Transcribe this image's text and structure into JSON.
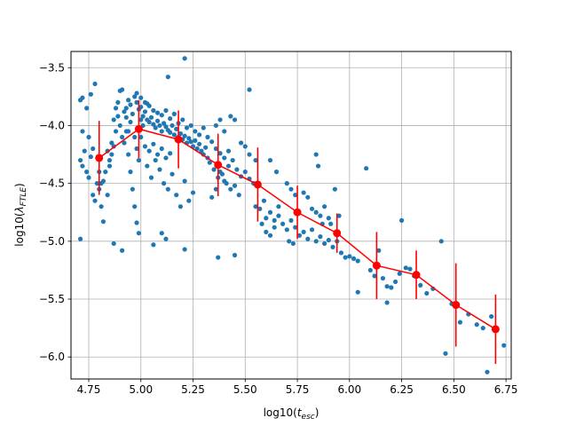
{
  "chart_data": {
    "type": "scatter",
    "xlabel_base": "log10(",
    "xlabel_var": "t",
    "xlabel_sub": "esc",
    "xlabel_close": ")",
    "ylabel_base": "log10(",
    "ylabel_var": "λ",
    "ylabel_sub": "FTLE",
    "ylabel_close": ")",
    "xlim": [
      4.665,
      6.775
    ],
    "ylim": [
      -6.19,
      -3.36
    ],
    "grid": true,
    "xticks": [
      4.75,
      5.0,
      5.25,
      5.5,
      5.75,
      6.0,
      6.25,
      6.5,
      6.75
    ],
    "xtick_labels": [
      "4.75",
      "5.00",
      "5.25",
      "5.50",
      "5.75",
      "6.00",
      "6.25",
      "6.50",
      "6.75"
    ],
    "yticks": [
      -3.5,
      -4.0,
      -4.5,
      -5.0,
      -5.5,
      -6.0
    ],
    "ytick_labels": [
      "−3.5",
      "−4.0",
      "−4.5",
      "−5.0",
      "−5.5",
      "−6.0"
    ],
    "scatter_color": "#1f77b4",
    "binned_color": "#ff0000",
    "binned": {
      "x": [
        4.8,
        4.99,
        5.18,
        5.37,
        5.56,
        5.75,
        5.94,
        6.13,
        6.32,
        6.51,
        6.7
      ],
      "y": [
        -4.28,
        -4.03,
        -4.12,
        -4.34,
        -4.51,
        -4.75,
        -4.93,
        -5.21,
        -5.29,
        -5.55,
        -5.76
      ],
      "err": [
        0.32,
        0.25,
        0.25,
        0.27,
        0.32,
        0.23,
        0.17,
        0.29,
        0.21,
        0.36,
        0.3
      ]
    },
    "scatter_points": [
      [
        4.71,
        -3.78
      ],
      [
        4.72,
        -3.76
      ],
      [
        4.74,
        -3.85
      ],
      [
        4.76,
        -3.73
      ],
      [
        4.78,
        -3.64
      ],
      [
        4.72,
        -4.05
      ],
      [
        4.71,
        -4.3
      ],
      [
        4.72,
        -4.35
      ],
      [
        4.74,
        -4.4
      ],
      [
        4.75,
        -4.45
      ],
      [
        4.76,
        -4.27
      ],
      [
        4.77,
        -4.6
      ],
      [
        4.78,
        -4.65
      ],
      [
        4.79,
        -4.5
      ],
      [
        4.8,
        -4.55
      ],
      [
        4.71,
        -4.98
      ],
      [
        4.73,
        -4.22
      ],
      [
        4.75,
        -4.1
      ],
      [
        4.77,
        -4.2
      ],
      [
        4.8,
        -4.4
      ],
      [
        4.81,
        -4.7
      ],
      [
        4.82,
        -4.83
      ],
      [
        4.84,
        -4.6
      ],
      [
        4.85,
        -4.35
      ],
      [
        4.86,
        -4.15
      ],
      [
        4.87,
        -3.95
      ],
      [
        4.88,
        -3.85
      ],
      [
        4.89,
        -3.8
      ],
      [
        4.9,
        -3.7
      ],
      [
        4.91,
        -3.69
      ],
      [
        4.92,
        -3.88
      ],
      [
        4.93,
        -4.05
      ],
      [
        4.94,
        -4.25
      ],
      [
        4.95,
        -4.4
      ],
      [
        4.96,
        -4.55
      ],
      [
        4.97,
        -4.7
      ],
      [
        4.98,
        -4.84
      ],
      [
        4.99,
        -4.93
      ],
      [
        4.87,
        -5.02
      ],
      [
        4.91,
        -5.08
      ],
      [
        4.93,
        -3.85
      ],
      [
        4.94,
        -3.78
      ],
      [
        4.95,
        -3.82
      ],
      [
        4.96,
        -3.9
      ],
      [
        4.97,
        -3.75
      ],
      [
        4.98,
        -3.8
      ],
      [
        4.99,
        -3.86
      ],
      [
        5.0,
        -3.84
      ],
      [
        5.01,
        -3.92
      ],
      [
        5.02,
        -3.88
      ],
      [
        5.03,
        -3.95
      ],
      [
        5.04,
        -3.97
      ],
      [
        5.05,
        -3.93
      ],
      [
        5.06,
        -3.99
      ],
      [
        5.07,
        -4.02
      ],
      [
        5.08,
        -3.96
      ],
      [
        5.09,
        -4.0
      ],
      [
        5.1,
        -4.05
      ],
      [
        5.11,
        -3.98
      ],
      [
        5.12,
        -4.01
      ],
      [
        5.13,
        -4.04
      ],
      [
        5.14,
        -4.06
      ],
      [
        5.15,
        -4.0
      ],
      [
        5.16,
        -4.08
      ],
      [
        5.17,
        -4.03
      ],
      [
        5.18,
        -4.1
      ],
      [
        5.19,
        -4.07
      ],
      [
        5.2,
        -4.12
      ],
      [
        5.21,
        -4.09
      ],
      [
        5.22,
        -4.15
      ],
      [
        5.23,
        -4.11
      ],
      [
        5.24,
        -4.14
      ],
      [
        5.25,
        -4.18
      ],
      [
        5.26,
        -4.13
      ],
      [
        5.27,
        -4.2
      ],
      [
        5.28,
        -4.16
      ],
      [
        5.29,
        -4.22
      ],
      [
        5.3,
        -4.25
      ],
      [
        5.31,
        -4.19
      ],
      [
        5.32,
        -4.28
      ],
      [
        5.0,
        -4.1
      ],
      [
        5.02,
        -4.18
      ],
      [
        5.04,
        -4.22
      ],
      [
        5.06,
        -4.16
      ],
      [
        5.08,
        -4.25
      ],
      [
        5.1,
        -4.2
      ],
      [
        5.12,
        -4.28
      ],
      [
        5.14,
        -4.24
      ],
      [
        5.03,
        -4.35
      ],
      [
        5.05,
        -4.45
      ],
      [
        5.07,
        -4.3
      ],
      [
        5.09,
        -4.38
      ],
      [
        5.11,
        -4.5
      ],
      [
        5.13,
        -4.55
      ],
      [
        5.15,
        -4.42
      ],
      [
        5.17,
        -4.6
      ],
      [
        5.19,
        -4.7
      ],
      [
        5.21,
        -4.48
      ],
      [
        5.23,
        -4.65
      ],
      [
        5.25,
        -4.58
      ],
      [
        5.06,
        -5.03
      ],
      [
        5.1,
        -4.93
      ],
      [
        5.12,
        -4.98
      ],
      [
        5.21,
        -5.07
      ],
      [
        4.98,
        -4.2
      ],
      [
        4.99,
        -4.3
      ],
      [
        4.97,
        -4.1
      ],
      [
        5.01,
        -4.0
      ],
      [
        5.0,
        -3.95
      ],
      [
        5.02,
        -3.8
      ],
      [
        5.04,
        -3.83
      ],
      [
        5.06,
        -3.87
      ],
      [
        5.08,
        -3.89
      ],
      [
        5.1,
        -3.91
      ],
      [
        5.12,
        -3.87
      ],
      [
        5.14,
        -3.94
      ],
      [
        5.16,
        -3.9
      ],
      [
        5.18,
        -3.98
      ],
      [
        5.2,
        -3.95
      ],
      [
        5.22,
        -4.02
      ],
      [
        5.13,
        -3.58
      ],
      [
        5.21,
        -3.42
      ],
      [
        5.0,
        -3.76
      ],
      [
        4.98,
        -3.72
      ],
      [
        5.03,
        -3.81
      ],
      [
        4.95,
        -3.97
      ],
      [
        4.94,
        -4.05
      ],
      [
        4.93,
        -3.93
      ],
      [
        4.92,
        -4.15
      ],
      [
        4.91,
        -4.1
      ],
      [
        4.9,
        -4.0
      ],
      [
        4.89,
        -3.92
      ],
      [
        4.88,
        -4.05
      ],
      [
        4.87,
        -4.18
      ],
      [
        4.86,
        -4.25
      ],
      [
        4.85,
        -4.3
      ],
      [
        4.84,
        -4.22
      ],
      [
        4.83,
        -4.4
      ],
      [
        4.82,
        -4.48
      ],
      [
        4.81,
        -4.5
      ],
      [
        5.24,
        -4.0
      ],
      [
        5.26,
        -4.05
      ],
      [
        5.28,
        -4.08
      ],
      [
        5.3,
        -4.02
      ],
      [
        5.32,
        -4.1
      ],
      [
        5.34,
        -4.14
      ],
      [
        5.36,
        -4.2
      ],
      [
        5.38,
        -4.24
      ],
      [
        5.4,
        -4.28
      ],
      [
        5.42,
        -4.22
      ],
      [
        5.33,
        -4.32
      ],
      [
        5.35,
        -4.38
      ],
      [
        5.37,
        -4.45
      ],
      [
        5.39,
        -4.42
      ],
      [
        5.41,
        -4.5
      ],
      [
        5.43,
        -4.55
      ],
      [
        5.45,
        -4.52
      ],
      [
        5.47,
        -4.6
      ],
      [
        5.34,
        -4.62
      ],
      [
        5.36,
        -4.55
      ],
      [
        5.38,
        -4.4
      ],
      [
        5.4,
        -4.48
      ],
      [
        5.42,
        -4.35
      ],
      [
        5.44,
        -4.3
      ],
      [
        5.46,
        -4.38
      ],
      [
        5.48,
        -4.44
      ],
      [
        5.5,
        -4.4
      ],
      [
        5.52,
        -4.46
      ],
      [
        5.54,
        -4.5
      ],
      [
        5.36,
        -4.0
      ],
      [
        5.38,
        -3.95
      ],
      [
        5.4,
        -4.05
      ],
      [
        5.43,
        -3.92
      ],
      [
        5.45,
        -3.95
      ],
      [
        5.48,
        -4.15
      ],
      [
        5.5,
        -4.18
      ],
      [
        5.52,
        -4.25
      ],
      [
        5.55,
        -4.3
      ],
      [
        5.52,
        -3.69
      ],
      [
        5.37,
        -5.14
      ],
      [
        5.45,
        -5.12
      ],
      [
        5.55,
        -4.7
      ],
      [
        5.57,
        -4.72
      ],
      [
        5.59,
        -4.65
      ],
      [
        5.6,
        -4.8
      ],
      [
        5.62,
        -4.75
      ],
      [
        5.64,
        -4.82
      ],
      [
        5.66,
        -4.7
      ],
      [
        5.58,
        -4.85
      ],
      [
        5.6,
        -4.92
      ],
      [
        5.62,
        -4.95
      ],
      [
        5.64,
        -4.88
      ],
      [
        5.66,
        -4.78
      ],
      [
        5.68,
        -4.85
      ],
      [
        5.7,
        -4.9
      ],
      [
        5.72,
        -4.82
      ],
      [
        5.74,
        -4.88
      ],
      [
        5.76,
        -4.95
      ],
      [
        5.78,
        -4.92
      ],
      [
        5.8,
        -4.98
      ],
      [
        5.82,
        -4.9
      ],
      [
        5.84,
        -5.0
      ],
      [
        5.86,
        -4.96
      ],
      [
        5.88,
        -5.02
      ],
      [
        5.9,
        -4.99
      ],
      [
        5.92,
        -5.05
      ],
      [
        5.94,
        -5.0
      ],
      [
        5.96,
        -5.1
      ],
      [
        5.71,
        -5.0
      ],
      [
        5.73,
        -5.02
      ],
      [
        5.7,
        -4.5
      ],
      [
        5.72,
        -4.55
      ],
      [
        5.74,
        -4.6
      ],
      [
        5.78,
        -4.58
      ],
      [
        5.8,
        -4.62
      ],
      [
        5.82,
        -4.72
      ],
      [
        5.84,
        -4.75
      ],
      [
        5.86,
        -4.78
      ],
      [
        5.88,
        -4.7
      ],
      [
        5.9,
        -4.8
      ],
      [
        5.93,
        -4.55
      ],
      [
        5.85,
        -4.35
      ],
      [
        5.84,
        -4.25
      ],
      [
        5.87,
        -4.85
      ],
      [
        5.91,
        -4.85
      ],
      [
        5.95,
        -4.78
      ],
      [
        5.62,
        -4.3
      ],
      [
        5.65,
        -4.4
      ],
      [
        5.98,
        -5.14
      ],
      [
        6.0,
        -5.13
      ],
      [
        6.02,
        -5.15
      ],
      [
        6.04,
        -5.17
      ],
      [
        6.04,
        -5.44
      ],
      [
        6.08,
        -4.37
      ],
      [
        6.1,
        -5.25
      ],
      [
        6.12,
        -5.3
      ],
      [
        6.14,
        -5.08
      ],
      [
        6.16,
        -5.32
      ],
      [
        6.18,
        -5.39
      ],
      [
        6.2,
        -5.4
      ],
      [
        6.22,
        -5.35
      ],
      [
        6.24,
        -5.28
      ],
      [
        6.25,
        -4.82
      ],
      [
        6.18,
        -5.53
      ],
      [
        6.27,
        -5.23
      ],
      [
        6.29,
        -5.24
      ],
      [
        6.31,
        -5.3
      ],
      [
        6.34,
        -5.38
      ],
      [
        6.37,
        -5.45
      ],
      [
        6.4,
        -5.41
      ],
      [
        6.44,
        -5.0
      ],
      [
        6.46,
        -5.97
      ],
      [
        6.49,
        -5.54
      ],
      [
        6.53,
        -5.7
      ],
      [
        6.57,
        -5.63
      ],
      [
        6.61,
        -5.72
      ],
      [
        6.64,
        -5.75
      ],
      [
        6.66,
        -6.13
      ],
      [
        6.68,
        -5.65
      ],
      [
        6.74,
        -5.9
      ]
    ]
  }
}
